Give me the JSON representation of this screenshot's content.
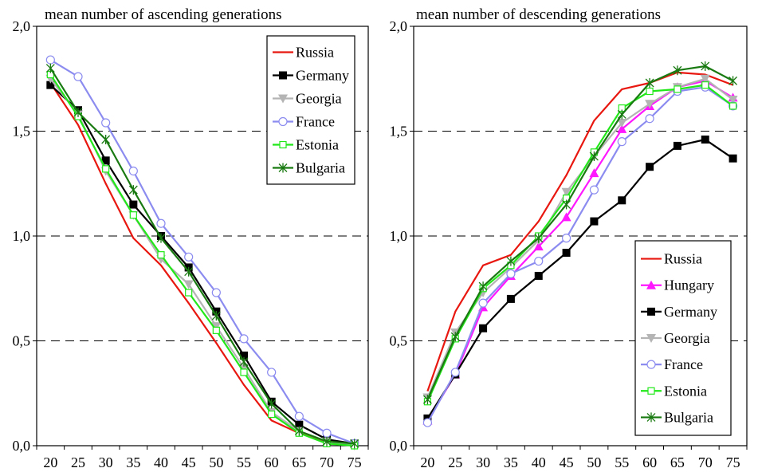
{
  "chart_data": [
    {
      "type": "line",
      "title": "mean number of ascending generations",
      "xlabel": "",
      "ylabel": "",
      "x": [
        20,
        25,
        30,
        35,
        40,
        45,
        50,
        55,
        60,
        65,
        70,
        75
      ],
      "x_tick_labels": [
        "20",
        "25",
        "30",
        "35",
        "40",
        "45",
        "50",
        "55",
        "60",
        "65",
        "70",
        "75"
      ],
      "ylim": [
        0,
        2
      ],
      "y_ticks": [
        0,
        0.5,
        1,
        1.5,
        2
      ],
      "y_tick_labels": [
        "0,0",
        "0,5",
        "1,0",
        "1,5",
        "2,0"
      ],
      "grid": "horizontal dashed",
      "legend_position": "top-right",
      "series": [
        {
          "name": "Russia",
          "color": "#e8170f",
          "marker": "none",
          "values": [
            1.73,
            1.53,
            1.25,
            0.99,
            0.86,
            0.68,
            0.49,
            0.29,
            0.12,
            0.06,
            0.02,
            0.01
          ]
        },
        {
          "name": "Germany",
          "color": "#000000",
          "marker": "square",
          "values": [
            1.72,
            1.6,
            1.36,
            1.15,
            1.0,
            0.85,
            0.64,
            0.43,
            0.21,
            0.1,
            0.03,
            0.01
          ]
        },
        {
          "name": "Georgia",
          "color": "#b4b4b4",
          "marker": "triangle-down",
          "values": [
            1.75,
            1.58,
            1.31,
            1.1,
            0.89,
            0.77,
            0.57,
            0.37,
            0.16,
            0.07,
            0.02,
            0.0
          ]
        },
        {
          "name": "France",
          "color": "#8c8cf0",
          "marker": "circle",
          "values": [
            1.84,
            1.76,
            1.54,
            1.31,
            1.06,
            0.9,
            0.73,
            0.51,
            0.35,
            0.14,
            0.06,
            0.01
          ]
        },
        {
          "name": "Estonia",
          "color": "#22e81a",
          "marker": "open-square",
          "values": [
            1.77,
            1.57,
            1.32,
            1.1,
            0.91,
            0.73,
            0.55,
            0.35,
            0.15,
            0.06,
            0.01,
            0.0
          ]
        },
        {
          "name": "Bulgaria",
          "color": "#1a7a12",
          "marker": "star",
          "values": [
            1.8,
            1.59,
            1.46,
            1.22,
            0.99,
            0.83,
            0.62,
            0.4,
            0.2,
            0.07,
            0.02,
            0.01
          ]
        }
      ]
    },
    {
      "type": "line",
      "title": "mean number of descending generations",
      "xlabel": "",
      "ylabel": "",
      "x": [
        20,
        25,
        30,
        35,
        40,
        45,
        50,
        55,
        60,
        65,
        70,
        75
      ],
      "x_tick_labels": [
        "20",
        "25",
        "30",
        "35",
        "40",
        "45",
        "50",
        "55",
        "60",
        "65",
        "70",
        "75"
      ],
      "ylim": [
        0,
        2
      ],
      "y_ticks": [
        0,
        0.5,
        1,
        1.5,
        2
      ],
      "y_tick_labels": [
        "0,0",
        "0,5",
        "1,0",
        "1,5",
        "2,0"
      ],
      "grid": "horizontal dashed",
      "legend_position": "bottom-right",
      "series": [
        {
          "name": "Russia",
          "color": "#e8170f",
          "marker": "none",
          "values": [
            0.26,
            0.64,
            0.86,
            0.91,
            1.07,
            1.29,
            1.55,
            1.7,
            1.73,
            1.78,
            1.77,
            1.72
          ]
        },
        {
          "name": "Hungary",
          "color": "#ff18ff",
          "marker": "triangle",
          "values": [
            0.12,
            0.34,
            0.66,
            0.81,
            0.95,
            1.09,
            1.3,
            1.51,
            1.62,
            1.71,
            1.74,
            1.66
          ]
        },
        {
          "name": "Germany",
          "color": "#000000",
          "marker": "square",
          "values": [
            0.13,
            0.34,
            0.56,
            0.7,
            0.81,
            0.92,
            1.07,
            1.17,
            1.33,
            1.43,
            1.46,
            1.37
          ]
        },
        {
          "name": "Georgia",
          "color": "#b4b4b4",
          "marker": "triangle-down",
          "values": [
            0.23,
            0.54,
            0.73,
            0.85,
            0.98,
            1.21,
            1.38,
            1.54,
            1.63,
            1.71,
            1.75,
            1.65
          ]
        },
        {
          "name": "France",
          "color": "#8c8cf0",
          "marker": "circle",
          "values": [
            0.11,
            0.35,
            0.68,
            0.82,
            0.88,
            0.99,
            1.22,
            1.45,
            1.56,
            1.69,
            1.71,
            1.62
          ]
        },
        {
          "name": "Estonia",
          "color": "#22e81a",
          "marker": "open-square",
          "values": [
            0.21,
            0.51,
            0.75,
            0.86,
            1.0,
            1.18,
            1.4,
            1.61,
            1.69,
            1.7,
            1.72,
            1.62
          ]
        },
        {
          "name": "Bulgaria",
          "color": "#1a7a12",
          "marker": "star",
          "values": [
            0.22,
            0.52,
            0.76,
            0.88,
            0.99,
            1.15,
            1.38,
            1.58,
            1.73,
            1.79,
            1.81,
            1.74
          ]
        }
      ]
    }
  ]
}
